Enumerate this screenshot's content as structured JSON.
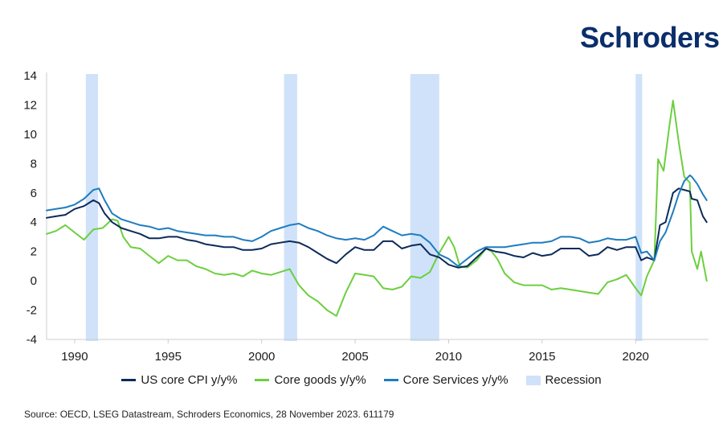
{
  "brand": {
    "logo_text": "Schroders",
    "color": "#0b2e6b"
  },
  "source_text": "Source: OECD, LSEG Datastream, Schroders Economics, 28 November 2023. 611179",
  "chart_data": {
    "type": "line",
    "title": "",
    "xlabel": "",
    "ylabel": "",
    "xlim": [
      1988.5,
      2023.9
    ],
    "ylim": [
      -4,
      14
    ],
    "yticks": [
      -4,
      -2,
      0,
      2,
      4,
      6,
      8,
      10,
      12,
      14
    ],
    "xticks": [
      1990,
      1995,
      2000,
      2005,
      2010,
      2015,
      2020
    ],
    "grid": false,
    "legend_position": "bottom",
    "recessions": [
      {
        "name": "Recession",
        "start": 1990.6,
        "end": 1991.25
      },
      {
        "name": "Recession",
        "start": 2001.2,
        "end": 2001.9
      },
      {
        "name": "Recession",
        "start": 2007.95,
        "end": 2009.5
      },
      {
        "name": "Recession",
        "start": 2020.0,
        "end": 2020.35
      }
    ],
    "recession_label": "Recession",
    "recession_color": "#cfe2fa",
    "series": [
      {
        "name": "US core CPI y/y%",
        "color": "#0c2a5a",
        "points": [
          [
            1988.5,
            4.3
          ],
          [
            1989,
            4.4
          ],
          [
            1989.5,
            4.5
          ],
          [
            1990,
            4.9
          ],
          [
            1990.5,
            5.1
          ],
          [
            1991,
            5.5
          ],
          [
            1991.3,
            5.3
          ],
          [
            1991.6,
            4.6
          ],
          [
            1992,
            4.0
          ],
          [
            1992.5,
            3.6
          ],
          [
            1993,
            3.4
          ],
          [
            1993.5,
            3.2
          ],
          [
            1994,
            2.9
          ],
          [
            1994.5,
            2.9
          ],
          [
            1995,
            3.0
          ],
          [
            1995.5,
            3.0
          ],
          [
            1996,
            2.8
          ],
          [
            1996.5,
            2.7
          ],
          [
            1997,
            2.5
          ],
          [
            1997.5,
            2.4
          ],
          [
            1998,
            2.3
          ],
          [
            1998.5,
            2.3
          ],
          [
            1999,
            2.1
          ],
          [
            1999.5,
            2.1
          ],
          [
            2000,
            2.2
          ],
          [
            2000.5,
            2.5
          ],
          [
            2001,
            2.6
          ],
          [
            2001.5,
            2.7
          ],
          [
            2002,
            2.6
          ],
          [
            2002.5,
            2.3
          ],
          [
            2003,
            1.9
          ],
          [
            2003.5,
            1.5
          ],
          [
            2004,
            1.2
          ],
          [
            2004.5,
            1.8
          ],
          [
            2005,
            2.3
          ],
          [
            2005.5,
            2.1
          ],
          [
            2006,
            2.1
          ],
          [
            2006.5,
            2.7
          ],
          [
            2007,
            2.7
          ],
          [
            2007.5,
            2.2
          ],
          [
            2008,
            2.4
          ],
          [
            2008.5,
            2.5
          ],
          [
            2009,
            1.8
          ],
          [
            2009.5,
            1.6
          ],
          [
            2010,
            1.1
          ],
          [
            2010.5,
            0.9
          ],
          [
            2011,
            1.0
          ],
          [
            2011.5,
            1.6
          ],
          [
            2012,
            2.2
          ],
          [
            2012.5,
            2.0
          ],
          [
            2013,
            1.9
          ],
          [
            2013.5,
            1.7
          ],
          [
            2014,
            1.6
          ],
          [
            2014.5,
            1.9
          ],
          [
            2015,
            1.7
          ],
          [
            2015.5,
            1.8
          ],
          [
            2016,
            2.2
          ],
          [
            2016.5,
            2.2
          ],
          [
            2017,
            2.2
          ],
          [
            2017.5,
            1.7
          ],
          [
            2018,
            1.8
          ],
          [
            2018.5,
            2.3
          ],
          [
            2019,
            2.1
          ],
          [
            2019.5,
            2.3
          ],
          [
            2020,
            2.3
          ],
          [
            2020.3,
            1.4
          ],
          [
            2020.6,
            1.6
          ],
          [
            2021,
            1.4
          ],
          [
            2021.3,
            3.8
          ],
          [
            2021.6,
            4.0
          ],
          [
            2022,
            6.0
          ],
          [
            2022.3,
            6.3
          ],
          [
            2022.6,
            6.2
          ],
          [
            2022.9,
            6.1
          ],
          [
            2023,
            5.6
          ],
          [
            2023.3,
            5.5
          ],
          [
            2023.6,
            4.4
          ],
          [
            2023.8,
            4.0
          ]
        ]
      },
      {
        "name": "Core goods y/y%",
        "color": "#6ccf3f",
        "points": [
          [
            1988.5,
            3.2
          ],
          [
            1989,
            3.4
          ],
          [
            1989.5,
            3.8
          ],
          [
            1990,
            3.3
          ],
          [
            1990.5,
            2.8
          ],
          [
            1991,
            3.5
          ],
          [
            1991.5,
            3.6
          ],
          [
            1992,
            4.2
          ],
          [
            1992.3,
            4.1
          ],
          [
            1992.6,
            3.0
          ],
          [
            1993,
            2.3
          ],
          [
            1993.5,
            2.2
          ],
          [
            1994,
            1.7
          ],
          [
            1994.5,
            1.2
          ],
          [
            1995,
            1.7
          ],
          [
            1995.5,
            1.4
          ],
          [
            1996,
            1.4
          ],
          [
            1996.5,
            1.0
          ],
          [
            1997,
            0.8
          ],
          [
            1997.5,
            0.5
          ],
          [
            1998,
            0.4
          ],
          [
            1998.5,
            0.5
          ],
          [
            1999,
            0.3
          ],
          [
            1999.5,
            0.7
          ],
          [
            2000,
            0.5
          ],
          [
            2000.5,
            0.4
          ],
          [
            2001,
            0.6
          ],
          [
            2001.5,
            0.8
          ],
          [
            2002,
            -0.3
          ],
          [
            2002.5,
            -1.0
          ],
          [
            2003,
            -1.4
          ],
          [
            2003.5,
            -2.0
          ],
          [
            2004,
            -2.4
          ],
          [
            2004.5,
            -0.8
          ],
          [
            2005,
            0.5
          ],
          [
            2005.5,
            0.4
          ],
          [
            2006,
            0.3
          ],
          [
            2006.5,
            -0.5
          ],
          [
            2007,
            -0.6
          ],
          [
            2007.5,
            -0.4
          ],
          [
            2008,
            0.3
          ],
          [
            2008.5,
            0.2
          ],
          [
            2009,
            0.6
          ],
          [
            2009.5,
            1.9
          ],
          [
            2010,
            3.0
          ],
          [
            2010.3,
            2.3
          ],
          [
            2010.6,
            1.0
          ],
          [
            2011,
            0.9
          ],
          [
            2011.5,
            1.4
          ],
          [
            2012,
            2.2
          ],
          [
            2012.3,
            2.0
          ],
          [
            2012.6,
            1.5
          ],
          [
            2013,
            0.5
          ],
          [
            2013.5,
            -0.1
          ],
          [
            2014,
            -0.3
          ],
          [
            2014.5,
            -0.3
          ],
          [
            2015,
            -0.3
          ],
          [
            2015.5,
            -0.6
          ],
          [
            2016,
            -0.5
          ],
          [
            2016.5,
            -0.6
          ],
          [
            2017,
            -0.7
          ],
          [
            2017.5,
            -0.8
          ],
          [
            2018,
            -0.9
          ],
          [
            2018.5,
            -0.1
          ],
          [
            2019,
            0.1
          ],
          [
            2019.5,
            0.4
          ],
          [
            2020,
            -0.5
          ],
          [
            2020.3,
            -1.0
          ],
          [
            2020.6,
            0.3
          ],
          [
            2021,
            1.4
          ],
          [
            2021.2,
            8.3
          ],
          [
            2021.5,
            7.5
          ],
          [
            2021.8,
            10.5
          ],
          [
            2022,
            12.3
          ],
          [
            2022.3,
            9.5
          ],
          [
            2022.6,
            7.1
          ],
          [
            2022.9,
            6.7
          ],
          [
            2023,
            2.0
          ],
          [
            2023.3,
            0.8
          ],
          [
            2023.5,
            2.0
          ],
          [
            2023.8,
            0.0
          ]
        ]
      },
      {
        "name": "Core Services y/y%",
        "color": "#1f7cc0",
        "points": [
          [
            1988.5,
            4.8
          ],
          [
            1989,
            4.9
          ],
          [
            1989.5,
            5.0
          ],
          [
            1990,
            5.2
          ],
          [
            1990.5,
            5.6
          ],
          [
            1991,
            6.2
          ],
          [
            1991.3,
            6.3
          ],
          [
            1991.6,
            5.5
          ],
          [
            1992,
            4.6
          ],
          [
            1992.5,
            4.2
          ],
          [
            1993,
            4.0
          ],
          [
            1993.5,
            3.8
          ],
          [
            1994,
            3.7
          ],
          [
            1994.5,
            3.5
          ],
          [
            1995,
            3.6
          ],
          [
            1995.5,
            3.4
          ],
          [
            1996,
            3.3
          ],
          [
            1996.5,
            3.2
          ],
          [
            1997,
            3.1
          ],
          [
            1997.5,
            3.1
          ],
          [
            1998,
            3.0
          ],
          [
            1998.5,
            3.0
          ],
          [
            1999,
            2.8
          ],
          [
            1999.5,
            2.7
          ],
          [
            2000,
            3.0
          ],
          [
            2000.5,
            3.4
          ],
          [
            2001,
            3.6
          ],
          [
            2001.5,
            3.8
          ],
          [
            2002,
            3.9
          ],
          [
            2002.5,
            3.6
          ],
          [
            2003,
            3.4
          ],
          [
            2003.5,
            3.1
          ],
          [
            2004,
            2.9
          ],
          [
            2004.5,
            2.8
          ],
          [
            2005,
            2.9
          ],
          [
            2005.5,
            2.8
          ],
          [
            2006,
            3.1
          ],
          [
            2006.5,
            3.7
          ],
          [
            2007,
            3.4
          ],
          [
            2007.5,
            3.1
          ],
          [
            2008,
            3.2
          ],
          [
            2008.5,
            3.1
          ],
          [
            2009,
            2.6
          ],
          [
            2009.5,
            1.8
          ],
          [
            2010,
            1.5
          ],
          [
            2010.5,
            1.0
          ],
          [
            2011,
            1.5
          ],
          [
            2011.5,
            2.0
          ],
          [
            2012,
            2.3
          ],
          [
            2012.5,
            2.3
          ],
          [
            2013,
            2.3
          ],
          [
            2013.5,
            2.4
          ],
          [
            2014,
            2.5
          ],
          [
            2014.5,
            2.6
          ],
          [
            2015,
            2.6
          ],
          [
            2015.5,
            2.7
          ],
          [
            2016,
            3.0
          ],
          [
            2016.5,
            3.0
          ],
          [
            2017,
            2.9
          ],
          [
            2017.5,
            2.6
          ],
          [
            2018,
            2.7
          ],
          [
            2018.5,
            2.9
          ],
          [
            2019,
            2.8
          ],
          [
            2019.5,
            2.8
          ],
          [
            2020,
            3.0
          ],
          [
            2020.3,
            1.9
          ],
          [
            2020.6,
            2.0
          ],
          [
            2021,
            1.4
          ],
          [
            2021.3,
            2.7
          ],
          [
            2021.6,
            3.3
          ],
          [
            2022,
            4.7
          ],
          [
            2022.3,
            5.9
          ],
          [
            2022.6,
            6.8
          ],
          [
            2022.9,
            7.2
          ],
          [
            2023,
            7.1
          ],
          [
            2023.3,
            6.6
          ],
          [
            2023.6,
            5.9
          ],
          [
            2023.8,
            5.5
          ]
        ]
      }
    ]
  }
}
